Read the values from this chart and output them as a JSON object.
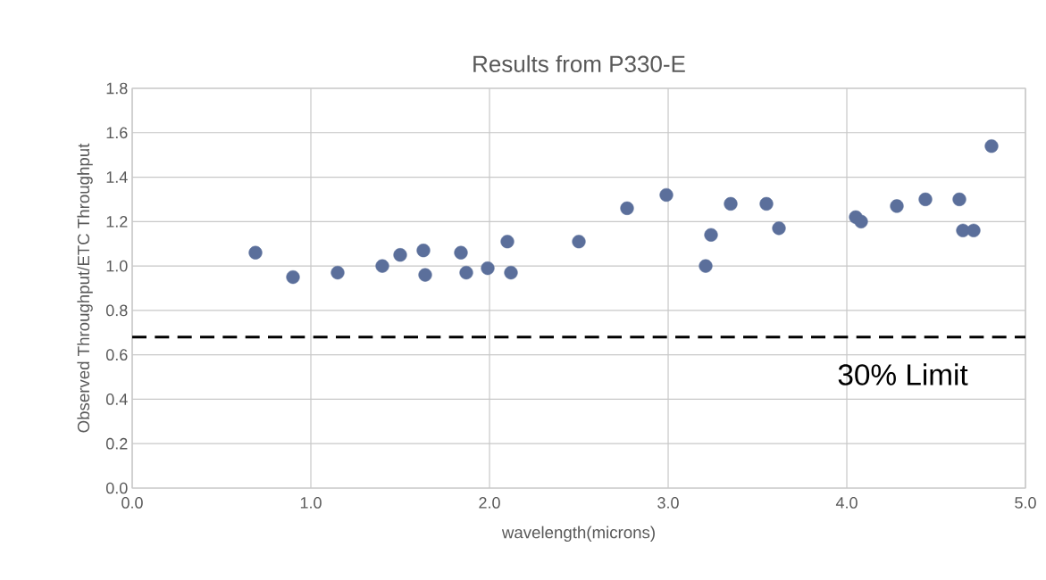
{
  "chart_data": {
    "type": "scatter",
    "title": "Results from P330-E",
    "xlabel": "wavelength(microns)",
    "ylabel": "Observed Throughput/ETC Throughput",
    "x": [
      0.69,
      0.9,
      1.15,
      1.4,
      1.5,
      1.63,
      1.64,
      1.84,
      1.87,
      1.99,
      2.1,
      2.12,
      2.5,
      2.77,
      2.99,
      3.21,
      3.24,
      3.35,
      3.55,
      3.62,
      4.05,
      4.08,
      4.28,
      4.44,
      4.63,
      4.65,
      4.71,
      4.81
    ],
    "values": [
      1.06,
      0.95,
      0.97,
      1.0,
      1.05,
      1.07,
      0.96,
      1.06,
      0.97,
      0.99,
      1.11,
      0.97,
      1.11,
      1.26,
      1.32,
      1.0,
      1.14,
      1.28,
      1.28,
      1.17,
      1.22,
      1.2,
      1.27,
      1.3,
      1.3,
      1.16,
      1.16,
      1.54
    ],
    "color": "#5b6f9b",
    "grid": true,
    "xlim": [
      0,
      5
    ],
    "ylim": [
      0,
      1.8
    ],
    "xticks": [
      {
        "value": 0,
        "label": "0.0"
      },
      {
        "value": 1,
        "label": "1.0"
      },
      {
        "value": 2,
        "label": "2.0"
      },
      {
        "value": 3,
        "label": "3.0"
      },
      {
        "value": 4,
        "label": "4.0"
      },
      {
        "value": 5,
        "label": "5.0"
      }
    ],
    "yticks": [
      {
        "value": 0,
        "label": "0.0"
      },
      {
        "value": 0.2,
        "label": "0.2"
      },
      {
        "value": 0.4,
        "label": "0.4"
      },
      {
        "value": 0.6,
        "label": "0.6"
      },
      {
        "value": 0.8,
        "label": "0.8"
      },
      {
        "value": 1.0,
        "label": "1.0"
      },
      {
        "value": 1.2,
        "label": "1.2"
      },
      {
        "value": 1.4,
        "label": "1.4"
      },
      {
        "value": 1.6,
        "label": "1.6"
      },
      {
        "value": 1.8,
        "label": "1.8"
      }
    ],
    "ref_lines": [
      {
        "axis": "y",
        "value": 0.68,
        "label": "30% Limit",
        "color": "#000000",
        "line_style": "dashed"
      }
    ]
  }
}
